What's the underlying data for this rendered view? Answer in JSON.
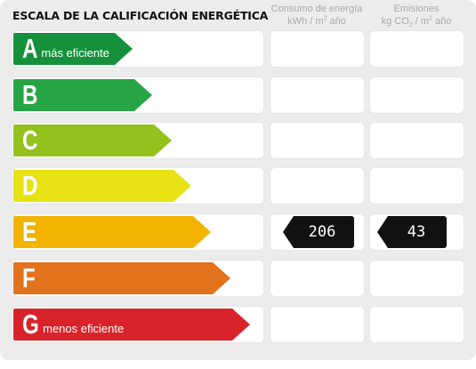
{
  "title": "ESCALA DE LA CALIFICACIÓN ENERGÉTICA",
  "columns": {
    "energy": {
      "line1": "Consumo de energía",
      "line2_pre": "kWh / m",
      "line2_sup": "2",
      "line2_post": " año"
    },
    "emissions": {
      "line1": "Emisiones",
      "line2_pre": "kg CO",
      "line2_sub": "2",
      "line2_mid": " / m",
      "line2_sup": "2",
      "line2_post": " año"
    }
  },
  "ratings": [
    {
      "letter": "A",
      "text": "más eficiente",
      "color": "#15913b"
    },
    {
      "letter": "B",
      "text": "",
      "color": "#27a545"
    },
    {
      "letter": "C",
      "text": "",
      "color": "#94c21c"
    },
    {
      "letter": "D",
      "text": "",
      "color": "#e8e214"
    },
    {
      "letter": "E",
      "text": "",
      "color": "#f2b400"
    },
    {
      "letter": "F",
      "text": "",
      "color": "#e2721b"
    },
    {
      "letter": "G",
      "text": "menos eficiente",
      "color": "#d9232a"
    }
  ],
  "current": {
    "rating": "E",
    "energy_value": "206",
    "emissions_value": "43"
  }
}
